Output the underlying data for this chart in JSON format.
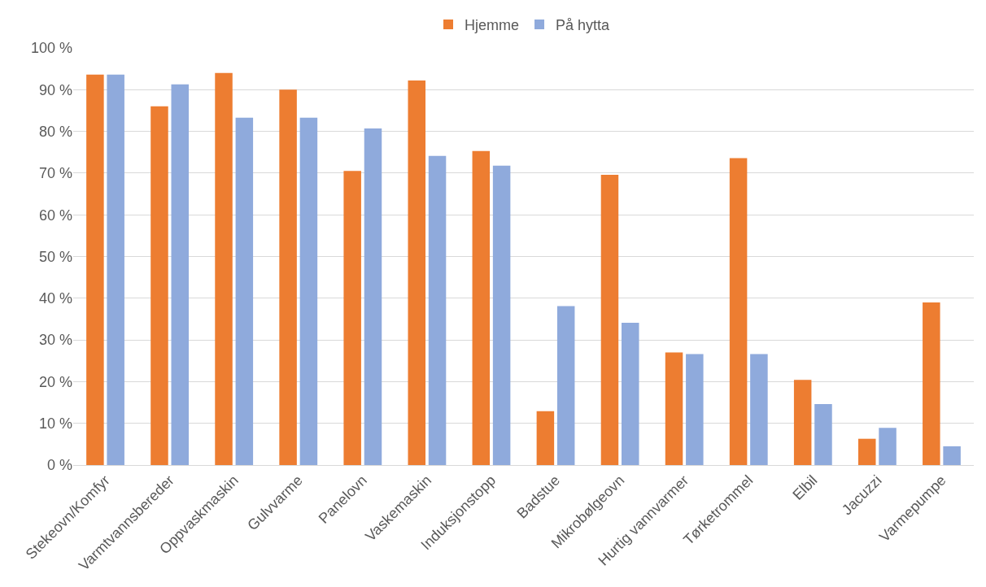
{
  "chart_data": {
    "type": "bar",
    "categories": [
      "Stekeovn/Komfyr",
      "Varmtvannsbereder",
      "Oppvaskmaskin",
      "Gulvvarme",
      "Panelovn",
      "Vaskemaskin",
      "Induksjonstopp",
      "Badstue",
      "Mikrobølgeovn",
      "Hurtig vannvarmer",
      "Tørketrommel",
      "Elbil",
      "Jacuzzi",
      "Varmepumpe"
    ],
    "series": [
      {
        "name": "Hjemme",
        "color": "#ed7d31",
        "values": [
          93.6,
          86.0,
          94.0,
          90.0,
          70.5,
          92.2,
          75.3,
          12.9,
          69.6,
          27.0,
          73.6,
          20.4,
          6.3,
          39.0
        ]
      },
      {
        "name": "På hytta",
        "color": "#8faadc",
        "values": [
          93.6,
          91.3,
          83.3,
          83.3,
          80.7,
          74.1,
          71.8,
          38.1,
          34.1,
          26.6,
          26.6,
          14.6,
          8.9,
          4.5
        ]
      }
    ],
    "ylim": [
      0,
      100
    ],
    "yticks": [
      {
        "value": 0,
        "label": "0 %"
      },
      {
        "value": 10,
        "label": "10 %"
      },
      {
        "value": 20,
        "label": "20 %"
      },
      {
        "value": 30,
        "label": "30 %"
      },
      {
        "value": 40,
        "label": "40 %"
      },
      {
        "value": 50,
        "label": "50 %"
      },
      {
        "value": 60,
        "label": "60 %"
      },
      {
        "value": 70,
        "label": "70 %"
      },
      {
        "value": 80,
        "label": "80 %"
      },
      {
        "value": 90,
        "label": "90 %"
      },
      {
        "value": 100,
        "label": "100 %"
      }
    ],
    "grid": "y",
    "legend": "top"
  }
}
